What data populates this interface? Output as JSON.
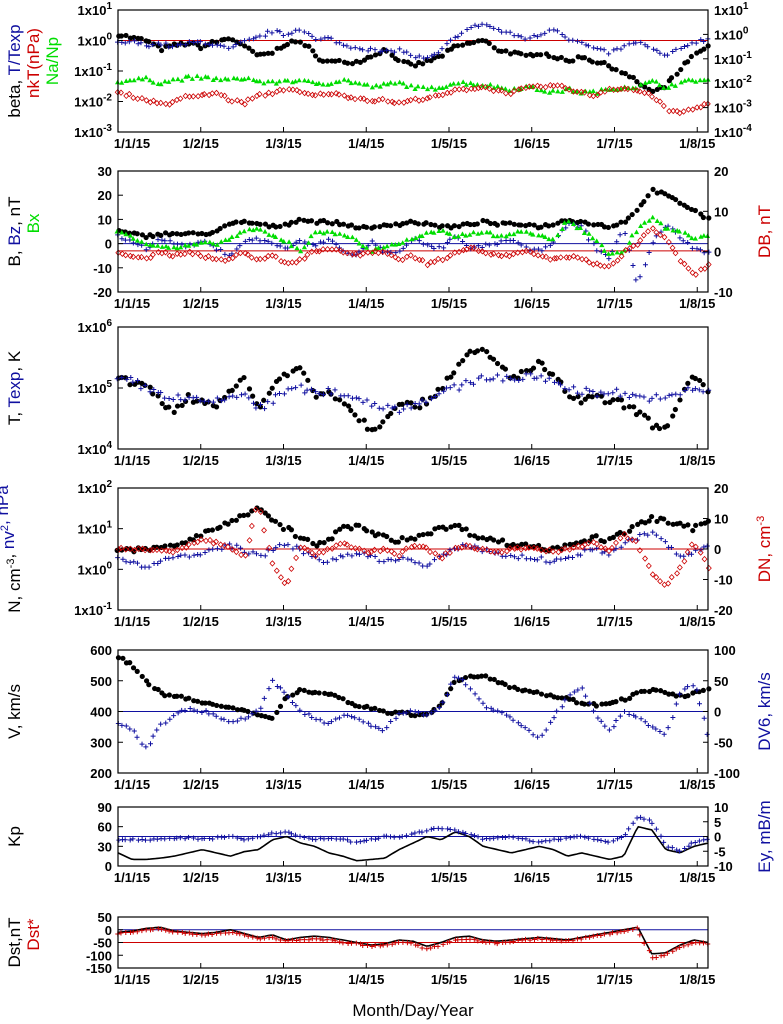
{
  "figure": {
    "xlabel": "Month/Day/Year",
    "x_ticks": [
      "1/1/15",
      "1/2/15",
      "1/3/15",
      "1/4/15",
      "1/5/15",
      "1/6/15",
      "1/7/15",
      "1/8/15"
    ]
  },
  "colors": {
    "black": "#000000",
    "blue": "#1010a0",
    "red": "#cc0000",
    "green": "#00dd00"
  },
  "chart_data": [
    {
      "id": "beta",
      "type": "scatter",
      "ylabel_parts": [
        {
          "text": "beta, ",
          "color": "black"
        },
        {
          "text": "T/Texp",
          "color": "blue"
        }
      ],
      "ylabel2_parts": [
        {
          "text": "nkT(nPa)",
          "color": "red"
        }
      ],
      "ylabel3_parts": [
        {
          "text": "Na/Np",
          "color": "green"
        }
      ],
      "left_axis": {
        "scale": "log",
        "range": [
          0.001,
          10
        ],
        "ticks": [
          "1x10-3",
          "1x10-2",
          "1x10-1",
          "1x100",
          "1x101"
        ]
      },
      "right_axis": {
        "scale": "log",
        "range": [
          0.0001,
          10
        ],
        "ticks": [
          "1x10-4",
          "1x10-3",
          "1x10-2",
          "1x10-1",
          "1x100",
          "1x101"
        ]
      },
      "reference_lines": [
        {
          "value": 1,
          "axis": "left",
          "color": "red"
        }
      ],
      "series": [
        {
          "color": "black",
          "marker": "dot",
          "axis": "left",
          "trend": "log:1.6,1.2,1.0,0.5,0.7,0.8,0.6,0.9,1.2,0.6,0.3,0.4,0.8,0.9,0.3,0.2,0.2,0.2,0.3,0.5,0.2,0.15,0.2,0.3,0.6,0.8,1.0,0.5,0.4,0.3,0.4,0.3,0.2,0.3,0.2,0.15,0.08,0.04,0.02,0.03,0.1,0.3,0.6"
        },
        {
          "color": "blue",
          "marker": "plus",
          "axis": "left",
          "trend": "log:0.8,0.9,0.7,0.8,0.6,0.8,0.9,0.7,0.5,0.9,1.2,2.0,1.5,2.5,1.0,1.2,0.7,0.6,0.5,0.4,0.5,0.3,0.25,0.4,1.2,2.5,3.5,2.2,1.6,1.2,1.4,2.5,1.2,0.8,0.5,0.4,0.6,0.9,0.5,0.3,0.5,0.9,1.1"
        },
        {
          "color": "green",
          "marker": "tri",
          "axis": "left",
          "trend": "log:0.045,0.05,0.055,0.04,0.05,0.06,0.06,0.055,0.05,0.06,0.045,0.04,0.05,0.045,0.04,0.04,0.05,0.04,0.03,0.035,0.04,0.03,0.025,0.03,0.04,0.04,0.035,0.03,0.025,0.03,0.025,0.02,0.025,0.02,0.02,0.025,0.03,0.03,0.045,0.03,0.04,0.05,0.05"
        },
        {
          "color": "red",
          "marker": "diamond",
          "axis": "right",
          "trend": "log:0.004,0.003,0.002,0.0015,0.0015,0.003,0.003,0.004,0.002,0.0015,0.003,0.004,0.006,0.004,0.003,0.004,0.003,0.0025,0.002,0.002,0.0015,0.002,0.0025,0.003,0.005,0.006,0.007,0.005,0.004,0.006,0.007,0.008,0.006,0.004,0.003,0.006,0.006,0.005,0.003,0.0008,0.0006,0.0009,0.0015"
        }
      ]
    },
    {
      "id": "magfield",
      "type": "scatter",
      "ylabel_parts": [
        {
          "text": "B, ",
          "color": "black"
        },
        {
          "text": "Bz",
          "color": "blue"
        },
        {
          "text": ", nT",
          "color": "black"
        }
      ],
      "ylabel2_parts": [
        {
          "text": "Bx",
          "color": "green"
        }
      ],
      "ylabel_right_parts": [
        {
          "text": "DB, nT",
          "color": "red"
        }
      ],
      "left_axis": {
        "scale": "linear",
        "range": [
          -20,
          30
        ],
        "ticks": [
          "-20",
          "-10",
          "0",
          "10",
          "20",
          "30"
        ]
      },
      "right_axis": {
        "scale": "linear",
        "range": [
          -10,
          20
        ],
        "ticks": [
          "-10",
          "0",
          "10",
          "20"
        ]
      },
      "reference_lines": [
        {
          "value": 0,
          "axis": "left",
          "color": "blue"
        },
        {
          "value": -3,
          "axis": "left",
          "color": "red"
        }
      ],
      "series": [
        {
          "color": "black",
          "marker": "dot",
          "axis": "left",
          "trend": "lin:5,4,3,4,4,4,4,5,8,9,8,7,8,10,9,9,8,7,6,8,8,9,8,7,7,8,9,8,8,8,7,8,10,9,8,7,9,14,22,20,17,14,10"
        },
        {
          "color": "blue",
          "marker": "plus",
          "axis": "left",
          "trend": "lin:3,1,-2,2,0,-1,1,-2,-5,1,2,0,-2,1,-1,2,-3,-5,1,-4,-3,2,-1,-2,3,-2,-1,0,2,-2,-3,1,8,7,-2,-6,6,-17,0,8,3,-2,-4"
        },
        {
          "color": "green",
          "marker": "tri",
          "axis": "left",
          "trend": "lin:5,3,0,-1,-2,-1,0,0,2,5,6,3,1,-3,4,5,4,1,-3,-1,0,2,4,5,3,4,5,3,4,5,3,2,9,6,2,-5,-3,6,11,6,5,2,3"
        },
        {
          "color": "red",
          "marker": "diamond",
          "axis": "right",
          "trend": "lin:0,-1,-2,0,-1,0,-1,-2,-2,0,-2,-1,-3,-2,0,1,0,-1,0,0,-2,-1,-3,-2,0,1,0,-1,-1,0,-1,-2,-1,-2,-3,-4,0,2,6,3,-2,-6,-3"
        }
      ]
    },
    {
      "id": "temperature",
      "type": "scatter",
      "ylabel_parts": [
        {
          "text": "T, ",
          "color": "black"
        },
        {
          "text": "Texp",
          "color": "blue"
        },
        {
          "text": ", K",
          "color": "black"
        }
      ],
      "left_axis": {
        "scale": "log",
        "range": [
          10000,
          1000000
        ],
        "ticks": [
          "1x104",
          "1x105",
          "1x106"
        ]
      },
      "series": [
        {
          "color": "black",
          "marker": "dot",
          "axis": "left",
          "trend": "log:150000,120000,100000,60000,40000,70000,60000,55000,80000,140000,40000,100000,180000,200000,70000,90000,60000,35000,20000,30000,60000,50000,60000,100000,200000,350000,400000,250000,150000,180000,250000,150000,80000,60000,70000,60000,55000,40000,25000,20000,60000,150000,80000"
        },
        {
          "color": "blue",
          "marker": "plus",
          "axis": "left",
          "trend": "log:140000,130000,100000,80000,70000,65000,60000,60000,70000,80000,45000,60000,90000,100000,80000,90000,80000,70000,55000,50000,45000,55000,65000,80000,100000,120000,150000,150000,140000,150000,150000,130000,100000,90000,80000,90000,80000,70000,70000,65000,80000,100000,90000"
        }
      ]
    },
    {
      "id": "density",
      "type": "scatter",
      "ylabel_parts": [
        {
          "text": "N, cm-3, ",
          "color": "black"
        },
        {
          "text": "nv2, nPa",
          "color": "blue"
        }
      ],
      "ylabel_right_parts": [
        {
          "text": "DN, cm-3",
          "color": "red"
        }
      ],
      "left_axis": {
        "scale": "log",
        "range": [
          0.1,
          100
        ],
        "ticks": [
          "1x10-1",
          "1x100",
          "1x101",
          "1x102"
        ]
      },
      "right_axis": {
        "scale": "linear",
        "range": [
          -20,
          20
        ],
        "ticks": [
          "-20",
          "-10",
          "0",
          "10",
          "20"
        ]
      },
      "reference_lines": [
        {
          "value": 0,
          "axis": "right",
          "color": "red"
        }
      ],
      "series": [
        {
          "color": "black",
          "marker": "dot",
          "axis": "left",
          "trend": "log:3,3,3,3.5,4,5,7,10,15,20,35,15,10,6,4,5,10,12,8,6,5,6,8,10,12,8,6,5,4,4,3.5,3,4,5,6,5,8,12,18,15,12,10,15"
        },
        {
          "color": "blue",
          "marker": "plus",
          "axis": "left",
          "trend": "log:2,1.5,1.2,1.5,2,2,2.5,3,4,3,2,3,4,3,2,1.5,2,2.5,2,1.5,2,1.5,1.2,2,3,4,3,2.5,2,2,1.8,1.5,2,2.5,3,2.5,4,6,8,4,2,2.5,4"
        },
        {
          "color": "red",
          "marker": "diamond",
          "axis": "right",
          "trend": "lin:0,0,0,0,-1,1,3,2,0,-2,15,-5,-12,1,-2,0,2,0,-1,0,-2,1,0,-3,0,1,0,-1,0,0,0,-1,0,1,2,-1,5,2,-8,-12,-6,2,-6"
        }
      ]
    },
    {
      "id": "velocity",
      "type": "scatter",
      "ylabel_parts": [
        {
          "text": "V, km/s",
          "color": "black"
        }
      ],
      "ylabel_right_parts": [
        {
          "text": "DV6, km/s",
          "color": "blue"
        }
      ],
      "left_axis": {
        "scale": "linear",
        "range": [
          200,
          600
        ],
        "ticks": [
          "200",
          "300",
          "400",
          "500",
          "600"
        ]
      },
      "right_axis": {
        "scale": "linear",
        "range": [
          -100,
          100
        ],
        "ticks": [
          "-100",
          "-50",
          "0",
          "50",
          "100"
        ]
      },
      "reference_lines": [
        {
          "value": 400,
          "axis": "left",
          "color": "blue"
        }
      ],
      "series": [
        {
          "color": "black",
          "marker": "dot",
          "axis": "left",
          "trend": "lin:580,550,500,460,450,440,430,420,410,400,390,380,450,470,460,460,440,420,410,400,395,390,395,420,500,510,520,500,480,470,460,450,440,430,420,430,440,460,470,460,450,460,470"
        },
        {
          "color": "blue",
          "marker": "plus",
          "axis": "left",
          "trend": "lin:360,340,280,350,390,410,400,390,360,380,400,500,450,400,380,360,390,380,350,340,390,400,390,420,520,480,420,400,380,350,310,380,450,480,380,340,400,380,350,320,460,490,330"
        }
      ]
    },
    {
      "id": "kp",
      "type": "line",
      "ylabel_parts": [
        {
          "text": "Kp",
          "color": "black"
        }
      ],
      "ylabel_right_parts": [
        {
          "text": "Ey, mB/m",
          "color": "blue"
        }
      ],
      "left_axis": {
        "scale": "linear",
        "range": [
          0,
          90
        ],
        "ticks": [
          "0",
          "30",
          "60",
          "90"
        ]
      },
      "right_axis": {
        "scale": "linear",
        "range": [
          -10,
          10
        ],
        "ticks": [
          "-10",
          "-5",
          "0",
          "5",
          "10"
        ]
      },
      "reference_lines": [
        {
          "value": 0,
          "axis": "right",
          "color": "blue"
        }
      ],
      "series": [
        {
          "color": "black",
          "marker": "line",
          "axis": "left",
          "trend": "lin:20,10,10,12,15,20,25,20,15,22,25,40,45,35,30,20,15,8,10,12,25,35,45,40,52,45,30,25,20,25,30,25,15,20,15,10,15,60,55,25,20,30,35"
        },
        {
          "color": "blue",
          "marker": "plus",
          "axis": "right",
          "trend": "lin:-1,-1,-1,-1,-0.5,-0.5,-1,-0.5,0,-1,0,1,1.5,0,-1,-0.5,-1,-2,-1,0,-0.5,1,2,3,2,1,-1,-0.5,0,-1,-2,-1,-0.5,0,-1,-2,0,7,5,-3,-5,-2,-1"
        }
      ]
    },
    {
      "id": "dst",
      "type": "line",
      "ylabel_parts": [
        {
          "text": "Dst,nT",
          "color": "black"
        }
      ],
      "ylabel2_parts": [
        {
          "text": "Dst*",
          "color": "red"
        }
      ],
      "left_axis": {
        "scale": "linear",
        "range": [
          -150,
          50
        ],
        "ticks": [
          "-150",
          "-100",
          "-50",
          "0",
          "50"
        ]
      },
      "reference_lines": [
        {
          "value": 0,
          "axis": "left",
          "color": "blue"
        },
        {
          "value": -50,
          "axis": "left",
          "color": "red"
        }
      ],
      "series": [
        {
          "color": "black",
          "marker": "line",
          "axis": "left",
          "trend": "lin:-10,-5,5,10,-5,-10,-15,-10,0,-15,-30,-20,-40,-30,-25,-30,-40,-50,-60,-55,-40,-45,-65,-50,-30,-25,-40,-45,-40,-35,-30,-35,-40,-30,-20,-10,0,10,-95,-90,-60,-40,-50"
        },
        {
          "color": "red",
          "marker": "plus",
          "axis": "left",
          "trend": "lin:-15,-10,0,5,-10,-15,-20,-15,-10,-20,-35,-30,-45,-40,-35,-40,-50,-55,-65,-60,-50,-55,-75,-60,-40,-35,-45,-55,-45,-40,-35,-40,-45,-35,-25,-15,-5,5,-110,-100,-70,-50,-55"
        }
      ]
    }
  ]
}
